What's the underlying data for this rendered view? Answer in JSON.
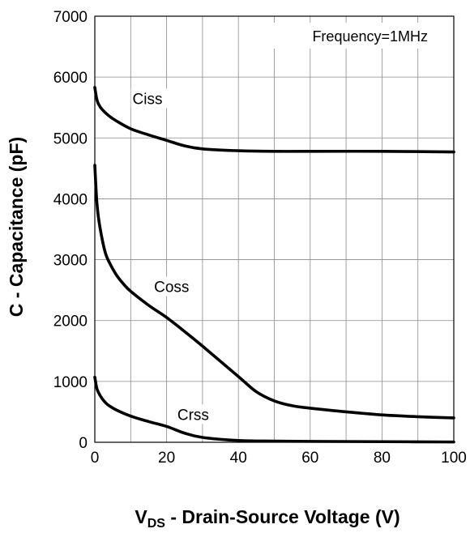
{
  "chart_data": {
    "type": "line",
    "annotation": "Frequency=1MHz",
    "xlabel": {
      "main": "V",
      "sub": "DS",
      "rest": " - Drain-Source Voltage (V)"
    },
    "ylabel": "C - Capacitance (pF)",
    "xlim": [
      0,
      100
    ],
    "ylim": [
      0,
      7000
    ],
    "grid": true,
    "x_grid_step": 10,
    "y_grid_step": 1000,
    "xticks": [
      "0",
      "20",
      "40",
      "60",
      "80",
      "100"
    ],
    "yticks": [
      "0",
      "1000",
      "2000",
      "3000",
      "4000",
      "5000",
      "6000",
      "7000"
    ],
    "series": [
      {
        "name": "Ciss",
        "x": [
          0,
          0.5,
          1,
          2,
          4,
          6,
          10,
          15,
          20,
          25,
          30,
          40,
          50,
          60,
          80,
          100
        ],
        "y": [
          5830,
          5650,
          5560,
          5470,
          5360,
          5280,
          5150,
          5050,
          4960,
          4870,
          4820,
          4790,
          4780,
          4780,
          4780,
          4770
        ]
      },
      {
        "name": "Coss",
        "x": [
          0,
          0.5,
          1,
          2,
          3,
          4,
          6,
          8,
          10,
          15,
          20,
          25,
          30,
          40,
          45,
          50,
          55,
          60,
          70,
          80,
          90,
          100
        ],
        "y": [
          4550,
          4000,
          3700,
          3350,
          3100,
          2960,
          2750,
          2600,
          2480,
          2250,
          2050,
          1820,
          1580,
          1080,
          830,
          680,
          600,
          560,
          500,
          450,
          420,
          400
        ]
      },
      {
        "name": "Crss",
        "x": [
          0,
          0.5,
          1,
          2,
          3,
          4,
          6,
          10,
          15,
          20,
          25,
          30,
          40,
          50,
          60,
          80,
          100
        ],
        "y": [
          1070,
          900,
          820,
          720,
          650,
          600,
          530,
          430,
          340,
          260,
          150,
          80,
          30,
          20,
          15,
          10,
          5
        ]
      }
    ],
    "series_labels": [
      {
        "text": "Ciss",
        "x": 10.5,
        "y": 5650
      },
      {
        "text": "Coss",
        "x": 16.5,
        "y": 2560
      },
      {
        "text": "Crss",
        "x": 23,
        "y": 460
      }
    ],
    "annotation_position": "top-right"
  }
}
